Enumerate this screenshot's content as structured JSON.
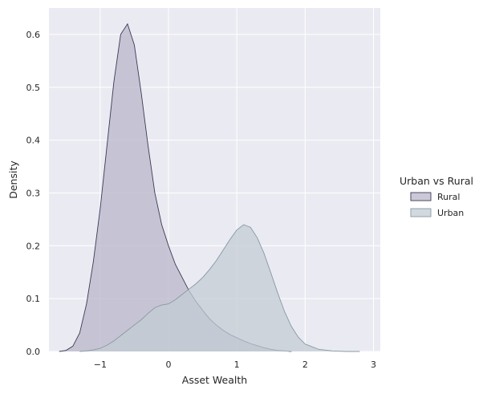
{
  "chart_data": {
    "type": "area",
    "title": "",
    "xlabel": "Asset Wealth",
    "ylabel": "Density",
    "xlim": [
      -1.75,
      3.1
    ],
    "ylim": [
      0,
      0.65
    ],
    "xticks": [
      -1,
      0,
      1,
      2,
      3
    ],
    "xtick_labels": [
      "−1",
      "0",
      "1",
      "2",
      "3"
    ],
    "yticks": [
      0.0,
      0.1,
      0.2,
      0.3,
      0.4,
      0.5,
      0.6
    ],
    "ytick_labels": [
      "0.0",
      "0.1",
      "0.2",
      "0.3",
      "0.4",
      "0.5",
      "0.6"
    ],
    "grid": true,
    "legend": {
      "title": "Urban vs Rural",
      "placement": "right"
    },
    "series": [
      {
        "name": "Rural",
        "fill": "#b9b7c9",
        "stroke": "#3c3a52",
        "x": [
          -1.6,
          -1.5,
          -1.4,
          -1.3,
          -1.2,
          -1.1,
          -1.0,
          -0.9,
          -0.8,
          -0.7,
          -0.6,
          -0.5,
          -0.4,
          -0.3,
          -0.2,
          -0.1,
          0.0,
          0.1,
          0.2,
          0.3,
          0.4,
          0.5,
          0.6,
          0.7,
          0.8,
          0.9,
          1.0,
          1.1,
          1.2,
          1.3,
          1.4,
          1.5,
          1.6,
          1.7,
          1.8
        ],
        "y": [
          0.0,
          0.002,
          0.01,
          0.035,
          0.09,
          0.17,
          0.27,
          0.39,
          0.51,
          0.6,
          0.62,
          0.58,
          0.49,
          0.39,
          0.3,
          0.24,
          0.2,
          0.165,
          0.14,
          0.115,
          0.095,
          0.078,
          0.062,
          0.05,
          0.04,
          0.032,
          0.026,
          0.02,
          0.015,
          0.011,
          0.007,
          0.004,
          0.002,
          0.001,
          0.0
        ]
      },
      {
        "name": "Urban",
        "fill": "#c3ccd4",
        "stroke": "#8899a2",
        "x": [
          -1.3,
          -1.2,
          -1.1,
          -1.0,
          -0.9,
          -0.8,
          -0.7,
          -0.6,
          -0.5,
          -0.4,
          -0.3,
          -0.2,
          -0.1,
          0.0,
          0.1,
          0.2,
          0.3,
          0.4,
          0.5,
          0.6,
          0.7,
          0.8,
          0.9,
          1.0,
          1.1,
          1.2,
          1.3,
          1.4,
          1.5,
          1.6,
          1.7,
          1.8,
          1.9,
          2.0,
          2.2,
          2.4,
          2.6,
          2.8
        ],
        "y": [
          0.0,
          0.001,
          0.003,
          0.006,
          0.012,
          0.02,
          0.03,
          0.04,
          0.05,
          0.06,
          0.072,
          0.083,
          0.088,
          0.09,
          0.098,
          0.108,
          0.118,
          0.128,
          0.14,
          0.155,
          0.172,
          0.192,
          0.212,
          0.23,
          0.24,
          0.235,
          0.215,
          0.185,
          0.148,
          0.11,
          0.075,
          0.047,
          0.027,
          0.014,
          0.004,
          0.001,
          0.0,
          0.0
        ]
      }
    ]
  }
}
